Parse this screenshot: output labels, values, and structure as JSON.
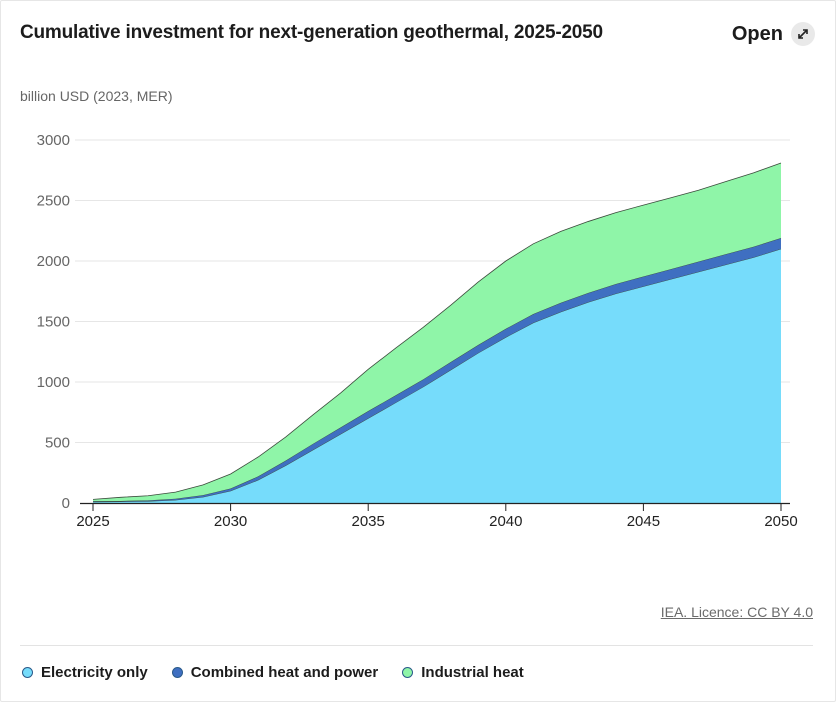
{
  "header": {
    "title": "Cumulative investment for next-generation geothermal, 2025-2050",
    "open_label": "Open",
    "unit_label": "billion USD (2023, MER)"
  },
  "footer": {
    "credit": "IEA. Licence: CC BY 4.0"
  },
  "icons": {
    "open": "expand-arrows-icon"
  },
  "chart_data": {
    "type": "area",
    "stacked": true,
    "title": "Cumulative investment for next-generation geothermal, 2025-2050",
    "ylabel": "billion USD (2023, MER)",
    "xlabel": "",
    "x": [
      2025,
      2026,
      2027,
      2028,
      2029,
      2030,
      2031,
      2032,
      2033,
      2034,
      2035,
      2036,
      2037,
      2038,
      2039,
      2040,
      2041,
      2042,
      2043,
      2044,
      2045,
      2046,
      2047,
      2048,
      2049,
      2050
    ],
    "xticks": [
      2025,
      2030,
      2035,
      2040,
      2045,
      2050
    ],
    "yticks": [
      0,
      500,
      1000,
      1500,
      2000,
      2500,
      3000
    ],
    "ylim": [
      0,
      3000
    ],
    "xlim": [
      2025,
      2050
    ],
    "grid": true,
    "legend_position": "bottom",
    "series": [
      {
        "name": "Electricity only",
        "color": "#76dcfb",
        "values": [
          10,
          12,
          15,
          25,
          50,
          100,
          190,
          310,
          440,
          570,
          700,
          830,
          960,
          1100,
          1240,
          1370,
          1490,
          1580,
          1660,
          1730,
          1790,
          1850,
          1910,
          1970,
          2030,
          2100
        ]
      },
      {
        "name": "Combined heat and power",
        "color": "#3f6fc1",
        "values": [
          5,
          5,
          7,
          10,
          15,
          20,
          30,
          40,
          50,
          55,
          60,
          60,
          62,
          65,
          67,
          70,
          72,
          75,
          77,
          80,
          82,
          83,
          85,
          87,
          88,
          90
        ]
      },
      {
        "name": "Industrial heat",
        "color": "#8ff5a8",
        "values": [
          15,
          30,
          38,
          55,
          85,
          120,
          160,
          195,
          240,
          285,
          345,
          390,
          430,
          470,
          520,
          560,
          580,
          590,
          590,
          590,
          590,
          590,
          590,
          600,
          610,
          620
        ]
      }
    ]
  }
}
